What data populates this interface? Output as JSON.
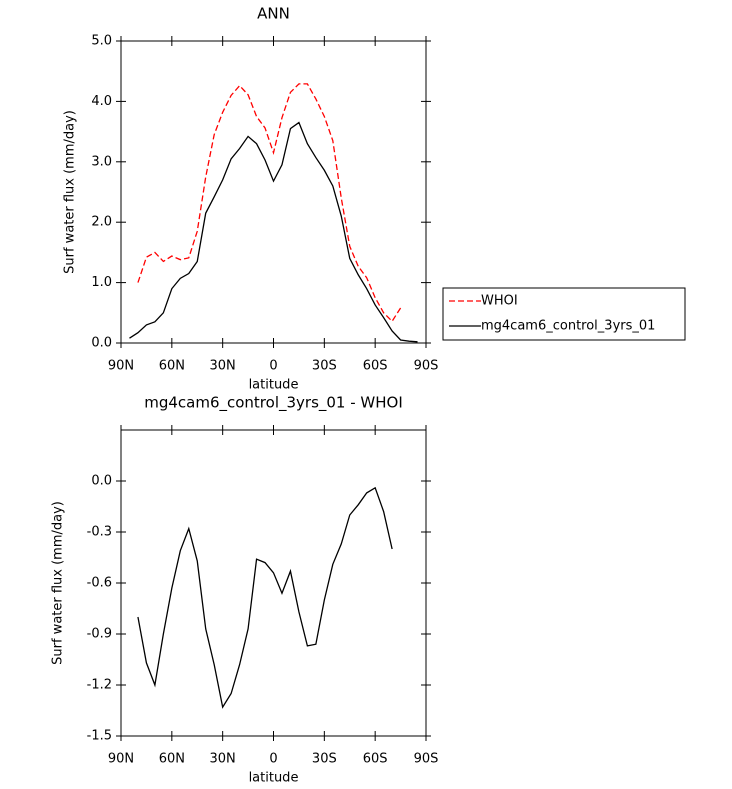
{
  "chart_data": [
    {
      "type": "line",
      "title": "ANN",
      "x_label": "latitude",
      "y_label": "Surf water flux (mm/day)",
      "x": [
        85,
        80,
        75,
        70,
        65,
        60,
        55,
        50,
        45,
        40,
        35,
        30,
        25,
        20,
        15,
        10,
        5,
        0,
        -5,
        -10,
        -15,
        -20,
        -25,
        -30,
        -35,
        -40,
        -45,
        -50,
        -55,
        -60,
        -65,
        -70,
        -75,
        -80,
        -85
      ],
      "series": [
        {
          "name": "WHOI",
          "color": "#ff0000",
          "dashed": true,
          "values": [
            null,
            1.0,
            1.42,
            1.5,
            1.35,
            1.44,
            1.38,
            1.41,
            1.85,
            2.75,
            3.45,
            3.82,
            4.1,
            4.26,
            4.11,
            3.75,
            3.56,
            3.15,
            3.73,
            4.15,
            4.29,
            4.29,
            4.04,
            3.75,
            3.35,
            2.4,
            1.6,
            1.27,
            1.08,
            0.75,
            0.5,
            0.36,
            0.58,
            null,
            null
          ]
        },
        {
          "name": "mg4cam6_control_3yrs_01",
          "color": "#000000",
          "dashed": false,
          "values": [
            0.08,
            0.17,
            0.3,
            0.35,
            0.5,
            0.9,
            1.07,
            1.15,
            1.35,
            2.15,
            2.42,
            2.7,
            3.05,
            3.22,
            3.42,
            3.3,
            3.03,
            2.68,
            2.95,
            3.55,
            3.65,
            3.3,
            3.07,
            2.86,
            2.6,
            2.1,
            1.4,
            1.13,
            0.9,
            0.63,
            0.42,
            0.2,
            0.05,
            0.03,
            0.02
          ]
        }
      ],
      "xlim": [
        90,
        -90
      ],
      "xticks": [
        {
          "value": 90,
          "label": "90N"
        },
        {
          "value": 60,
          "label": "60N"
        },
        {
          "value": 30,
          "label": "30N"
        },
        0,
        {
          "value": -30,
          "label": "30S"
        },
        {
          "value": -60,
          "label": "60S"
        },
        {
          "value": -90,
          "label": "90S"
        }
      ],
      "ylim": [
        0,
        5
      ],
      "yticks": [
        {
          "value": 0,
          "label": "0.0"
        },
        {
          "value": 1,
          "label": "1.0"
        },
        {
          "value": 2,
          "label": "2.0"
        },
        {
          "value": 3,
          "label": "3.0"
        },
        {
          "value": 4,
          "label": "4.0"
        },
        {
          "value": 5,
          "label": "5.0"
        }
      ],
      "legend": "right"
    },
    {
      "type": "line",
      "title": "mg4cam6_control_3yrs_01 - WHOI",
      "x_label": "latitude",
      "y_label": "Surf water flux (mm/day)",
      "x": [
        80,
        75,
        70,
        65,
        60,
        55,
        50,
        45,
        40,
        35,
        30,
        25,
        20,
        15,
        10,
        5,
        0,
        -5,
        -10,
        -15,
        -20,
        -25,
        -30,
        -35,
        -40,
        -45,
        -50,
        -55,
        -60,
        -65,
        -70
      ],
      "series": [
        {
          "color": "#000000",
          "dashed": false,
          "values": [
            -0.8,
            -1.07,
            -1.2,
            -0.9,
            -0.63,
            -0.41,
            -0.28,
            -0.47,
            -0.87,
            -1.08,
            -1.33,
            -1.25,
            -1.08,
            -0.87,
            -0.46,
            -0.48,
            -0.54,
            -0.66,
            -0.53,
            -0.77,
            -0.97,
            -0.96,
            -0.7,
            -0.49,
            -0.37,
            -0.2,
            -0.14,
            -0.07,
            -0.04,
            -0.18,
            -0.4
          ]
        }
      ],
      "xlim": [
        90,
        -90
      ],
      "xticks": [
        {
          "value": 90,
          "label": "90N"
        },
        {
          "value": 60,
          "label": "60N"
        },
        {
          "value": 30,
          "label": "30N"
        },
        0,
        {
          "value": -30,
          "label": "30S"
        },
        {
          "value": -60,
          "label": "60S"
        },
        {
          "value": -90,
          "label": "90S"
        }
      ],
      "ylim": [
        -1.5,
        0.3
      ],
      "yticks": [
        -1.5,
        -1.2,
        -0.9,
        -0.6,
        -0.3,
        {
          "value": 0,
          "label": "0.0"
        }
      ]
    }
  ]
}
